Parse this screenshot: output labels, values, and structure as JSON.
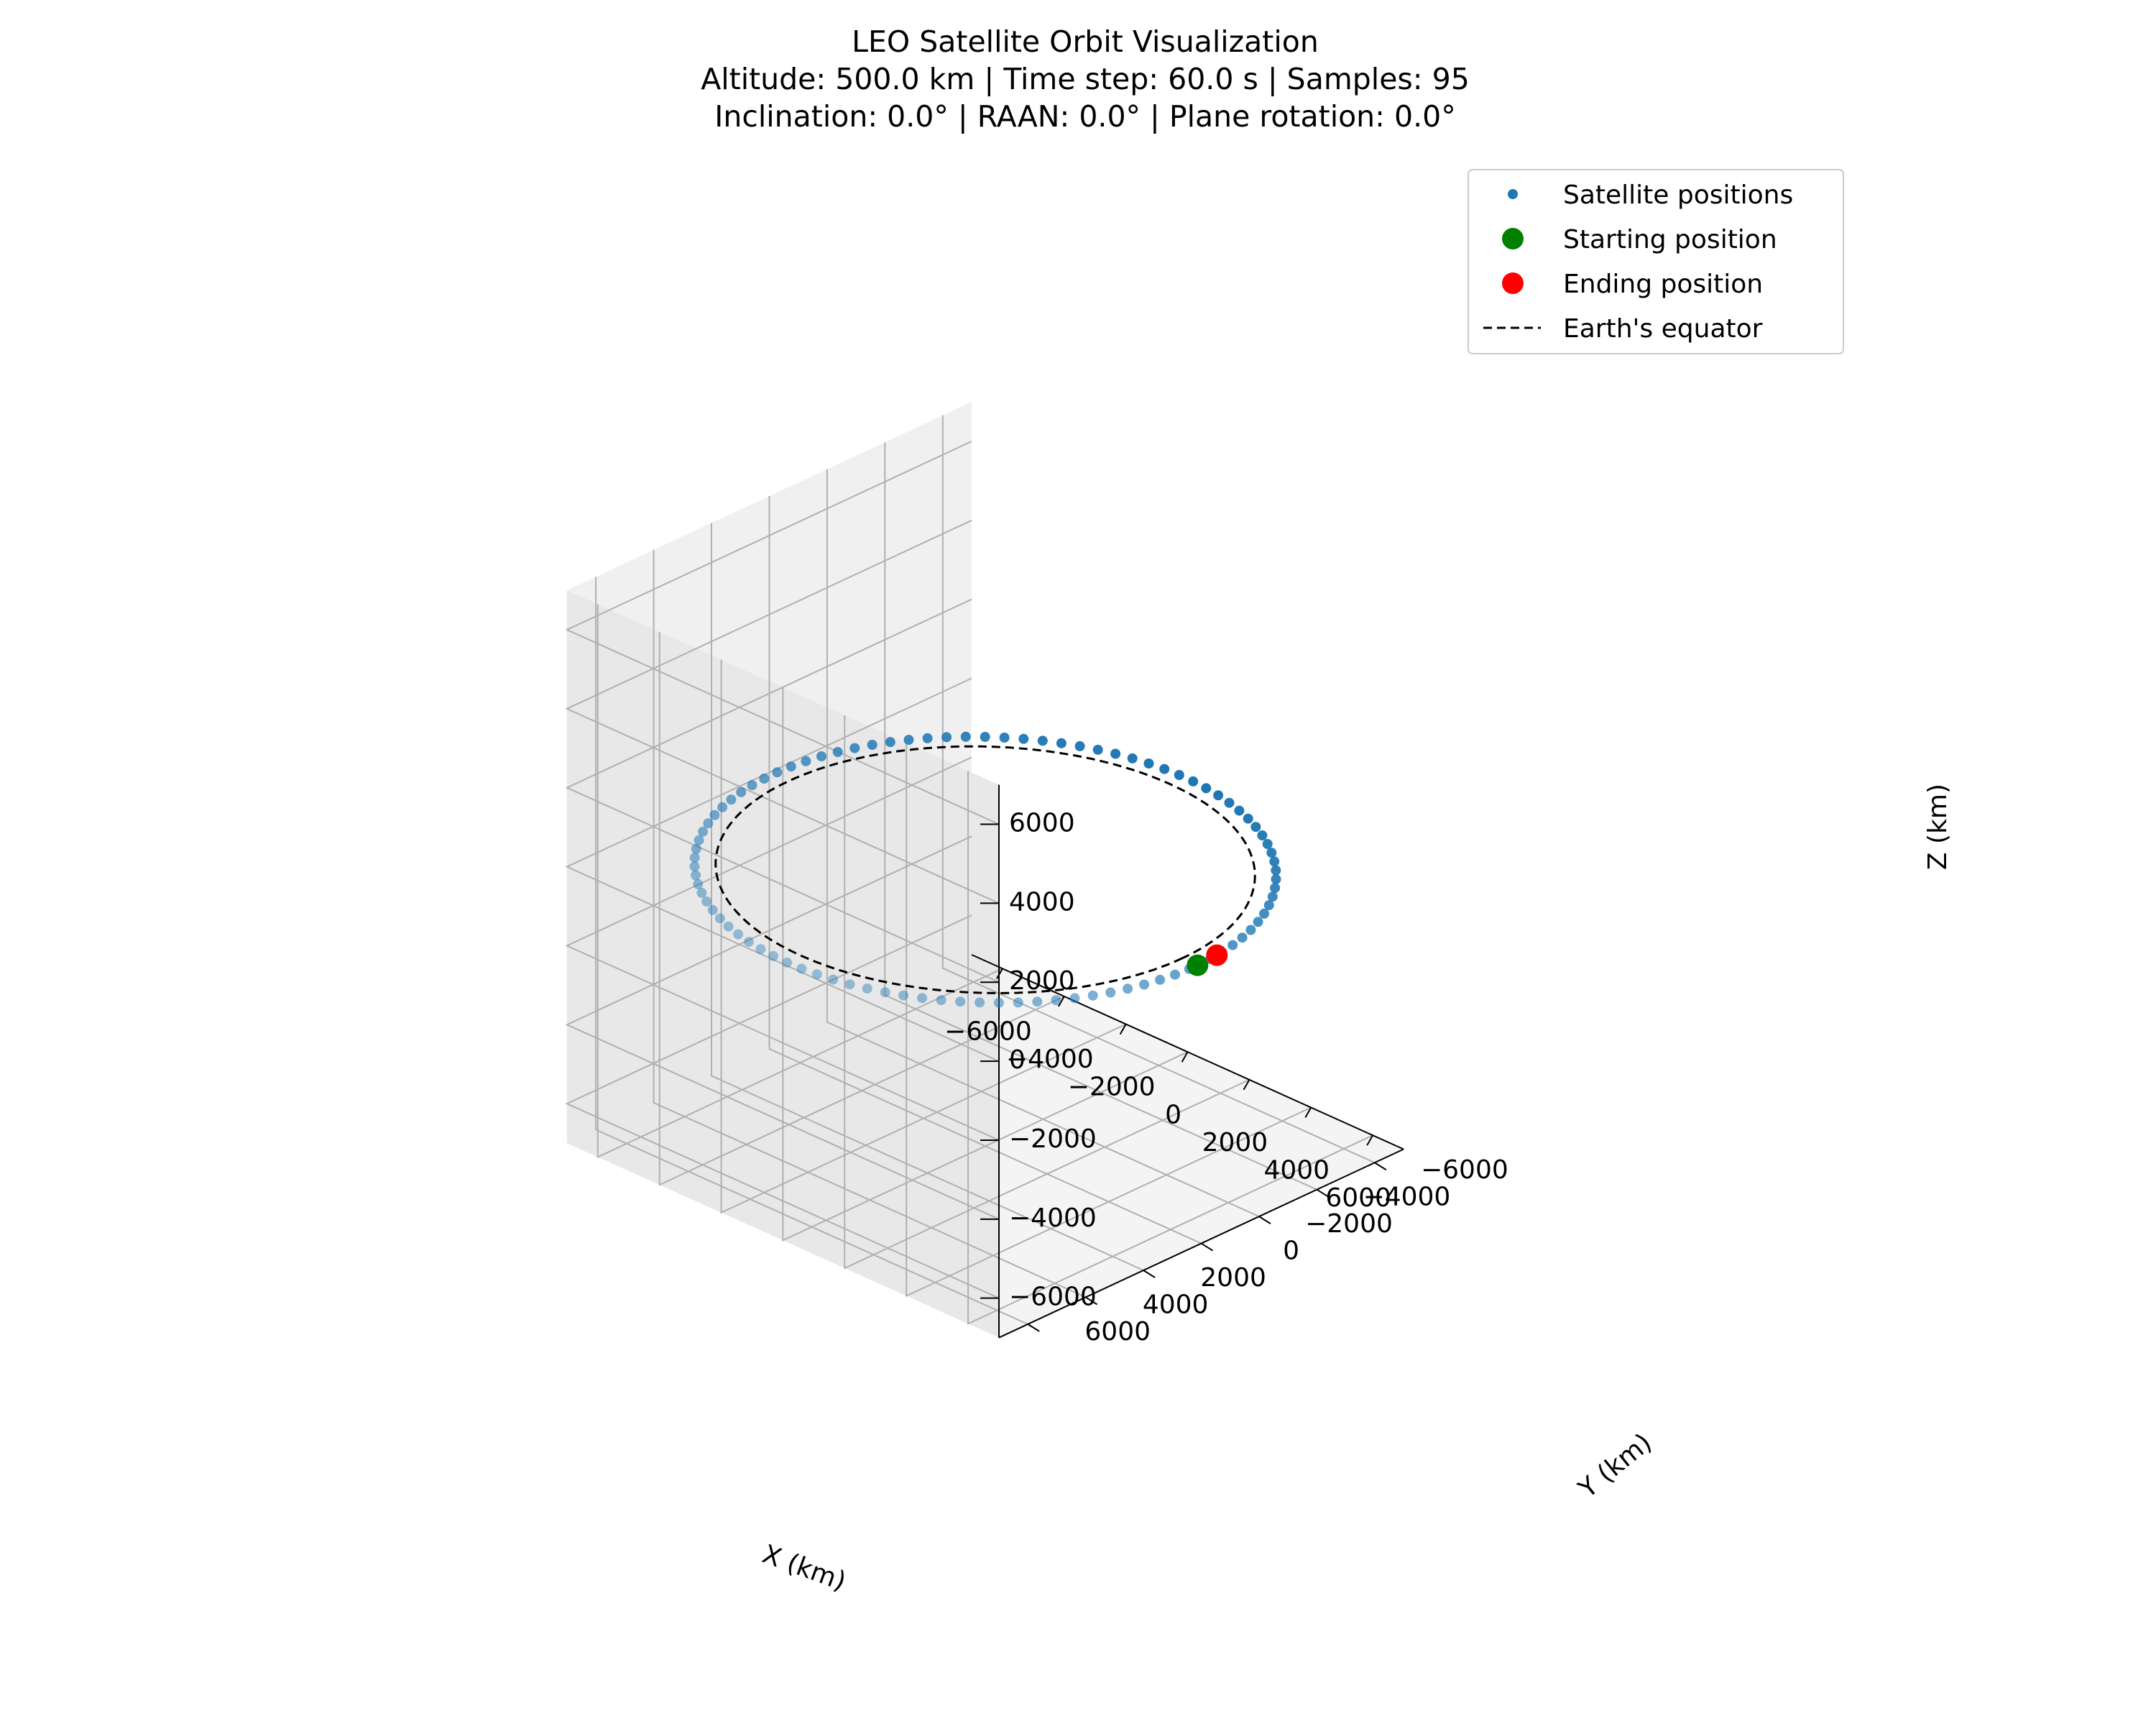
{
  "chart_data": {
    "type": "scatter",
    "projection": "3d",
    "title_lines": [
      "LEO Satellite Orbit Visualization",
      "Altitude: 500.0 km | Time step: 60.0 s | Samples: 95",
      "Inclination: 0.0° | RAAN: 0.0° | Plane rotation: 0.0°"
    ],
    "xlabel": "X (km)",
    "ylabel": "Y (km)",
    "zlabel": "Z (km)",
    "xlim": [
      -7000,
      7000
    ],
    "ylim": [
      -7000,
      7000
    ],
    "zlim": [
      -7000,
      7000
    ],
    "ticks": [
      -6000,
      -4000,
      -2000,
      0,
      2000,
      4000,
      6000
    ],
    "tick_labels": [
      "−6000",
      "−4000",
      "−2000",
      "0",
      "2000",
      "4000",
      "6000"
    ],
    "grid": true,
    "legend_position": "upper-right",
    "legend": [
      {
        "label": "Satellite positions",
        "marker": "small-dot",
        "color": "#1f77b4"
      },
      {
        "label": "Starting position",
        "marker": "large-dot",
        "color": "#008000"
      },
      {
        "label": "Ending position",
        "marker": "large-dot",
        "color": "#ff0000"
      },
      {
        "label": "Earth's equator",
        "marker": "dashed-line",
        "color": "#000000"
      }
    ],
    "series": {
      "orbit": {
        "radius_km": 6878,
        "samples": 95,
        "time_step_s": 60.0,
        "start_angle_deg": 0,
        "z": 0,
        "color": "#1f77b4"
      },
      "start": {
        "x": 6878,
        "y": 0,
        "z": 0,
        "color": "#008000"
      },
      "end": {
        "x": 6841,
        "y": -710,
        "z": 0,
        "color": "#ff0000"
      },
      "equator": {
        "radius_km": 6378,
        "z": 0,
        "color": "#000000"
      }
    },
    "colors": {
      "pane_left": "#f0f0f0",
      "pane_right": "#e8e8e8",
      "pane_floor": "#f4f4f4",
      "grid": "#b0b0b0"
    }
  }
}
